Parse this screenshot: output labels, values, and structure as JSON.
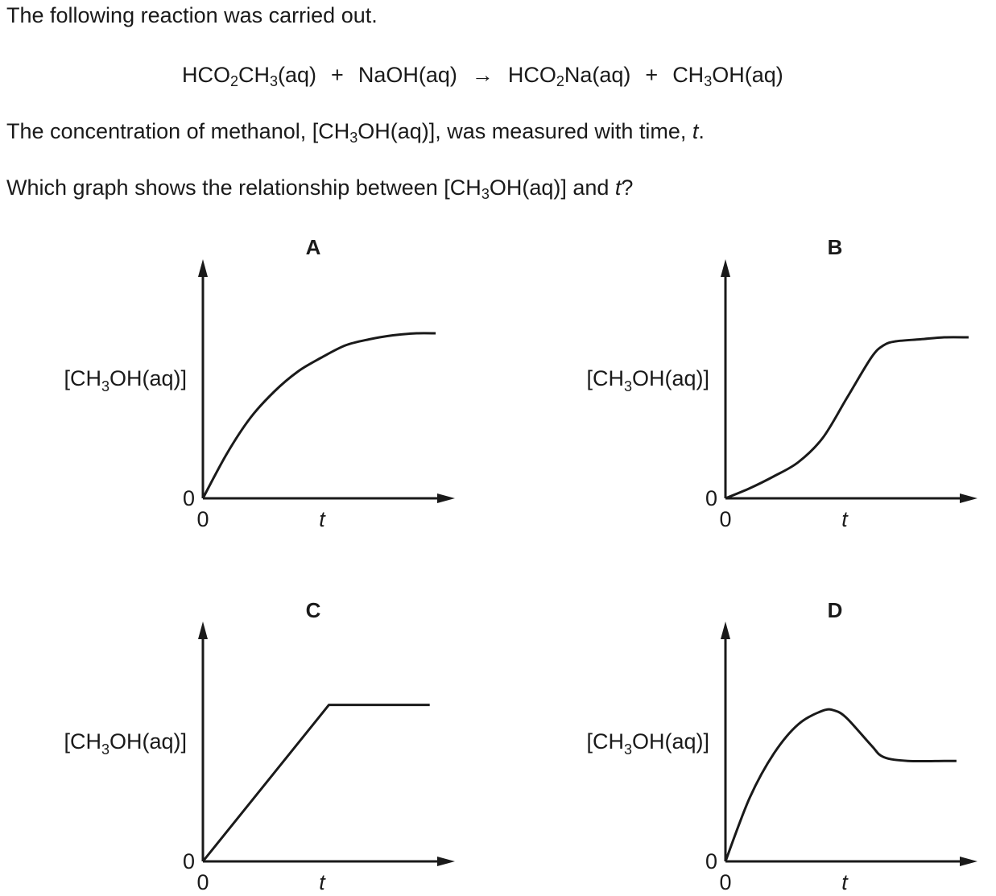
{
  "question": {
    "line1": "The following reaction was carried out.",
    "equation": {
      "reactant1": [
        "HCO",
        "2",
        "CH",
        "3",
        "(aq)"
      ],
      "plus1": "+",
      "reactant2": "NaOH(aq)",
      "arrow": "→",
      "product1": [
        "HCO",
        "2",
        "Na(aq)"
      ],
      "plus2": "+",
      "product2": [
        "CH",
        "3",
        "OH(aq)"
      ]
    },
    "line2": {
      "pre": "The concentration of methanol, [CH",
      "sub": "3",
      "post": "OH(aq)], was measured with time, ",
      "var": "t",
      "end": "."
    },
    "line3": {
      "pre": "Which graph shows the relationship between [CH",
      "sub": "3",
      "post": "OH(aq)] and ",
      "var": "t",
      "end": "?"
    }
  },
  "chart_data": [
    {
      "type": "line",
      "panel": "A",
      "title": "A",
      "ylabel": {
        "pre": "[CH",
        "sub": "3",
        "post": "OH(aq)]"
      },
      "xlabel": "t",
      "x_origin_label": "0",
      "y_origin_label": "0",
      "xlim": [
        0,
        1
      ],
      "ylim": [
        0,
        1
      ],
      "shape": "rises steeply from origin then levels off (decelerating curve)",
      "x": [
        0,
        0.1,
        0.2,
        0.3,
        0.4,
        0.5,
        0.6,
        0.7,
        0.8,
        0.9,
        0.98
      ],
      "y": [
        0,
        0.22,
        0.4,
        0.53,
        0.63,
        0.7,
        0.76,
        0.79,
        0.81,
        0.82,
        0.82
      ]
    },
    {
      "type": "line",
      "panel": "B",
      "title": "B",
      "ylabel": {
        "pre": "[CH",
        "sub": "3",
        "post": "OH(aq)]"
      },
      "xlabel": "t",
      "x_origin_label": "0",
      "y_origin_label": "0",
      "xlim": [
        0,
        1
      ],
      "ylim": [
        0,
        1
      ],
      "shape": "starts slowly, accelerates, then levels off (sigmoid)",
      "x": [
        0,
        0.1,
        0.2,
        0.3,
        0.4,
        0.5,
        0.6,
        0.65,
        0.7,
        0.8,
        0.9,
        1.0
      ],
      "y": [
        0,
        0.05,
        0.11,
        0.18,
        0.3,
        0.5,
        0.7,
        0.76,
        0.78,
        0.79,
        0.8,
        0.8
      ]
    },
    {
      "type": "line",
      "panel": "C",
      "title": "C",
      "ylabel": {
        "pre": "[CH",
        "sub": "3",
        "post": "OH(aq)]"
      },
      "xlabel": "t",
      "x_origin_label": "0",
      "y_origin_label": "0",
      "xlim": [
        0,
        1
      ],
      "ylim": [
        0,
        1
      ],
      "shape": "straight line rising from origin, then abruptly horizontal",
      "x": [
        0,
        0.5,
        0.9
      ],
      "y": [
        0,
        0.8,
        0.8
      ]
    },
    {
      "type": "line",
      "panel": "D",
      "title": "D",
      "ylabel": {
        "pre": "[CH",
        "sub": "3",
        "post": "OH(aq)]"
      },
      "xlabel": "t",
      "x_origin_label": "0",
      "y_origin_label": "0",
      "xlim": [
        0,
        1
      ],
      "ylim": [
        0,
        1
      ],
      "shape": "rises to a maximum, falls, then levels off at a lower value",
      "x": [
        0,
        0.1,
        0.2,
        0.3,
        0.4,
        0.45,
        0.5,
        0.6,
        0.65,
        0.75,
        0.9,
        0.95
      ],
      "y": [
        0,
        0.33,
        0.56,
        0.71,
        0.78,
        0.78,
        0.74,
        0.6,
        0.54,
        0.52,
        0.52,
        0.52
      ]
    }
  ]
}
